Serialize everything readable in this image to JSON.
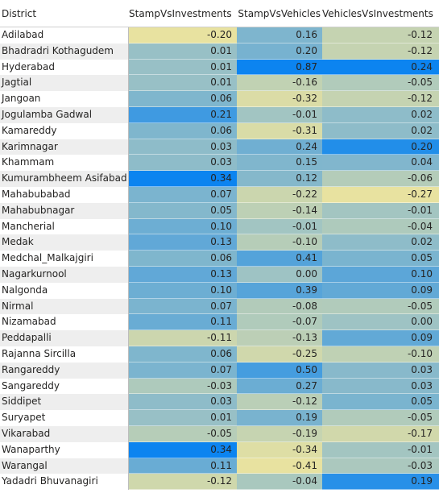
{
  "columns": {
    "district": "District",
    "c1": "StampVsInvestments",
    "c2": "StampVsVehicles",
    "c3": "VehiclesVsInvestments"
  },
  "colors": {
    "negative": "#e8e2a0",
    "neutral": "#9ec3c4",
    "positive": "#0c84f0"
  },
  "rows": [
    {
      "district": "Adilabad",
      "c1": "-0.20",
      "c2": "0.16",
      "c3": "-0.12"
    },
    {
      "district": "Bhadradri Kothagudem",
      "c1": "0.01",
      "c2": "0.20",
      "c3": "-0.12"
    },
    {
      "district": "Hyderabad",
      "c1": "0.01",
      "c2": "0.87",
      "c3": "0.24"
    },
    {
      "district": "Jagtial",
      "c1": "0.01",
      "c2": "-0.16",
      "c3": "-0.05"
    },
    {
      "district": "Jangoan",
      "c1": "0.06",
      "c2": "-0.32",
      "c3": "-0.12"
    },
    {
      "district": "Jogulamba Gadwal",
      "c1": "0.21",
      "c2": "-0.01",
      "c3": "0.02"
    },
    {
      "district": "Kamareddy",
      "c1": "0.06",
      "c2": "-0.31",
      "c3": "0.02"
    },
    {
      "district": "Karimnagar",
      "c1": "0.03",
      "c2": "0.24",
      "c3": "0.20"
    },
    {
      "district": "Khammam",
      "c1": "0.03",
      "c2": "0.15",
      "c3": "0.04"
    },
    {
      "district": "Kumurambheem Asifabad",
      "c1": "0.34",
      "c2": "0.12",
      "c3": "-0.06"
    },
    {
      "district": "Mahabubabad",
      "c1": "0.07",
      "c2": "-0.22",
      "c3": "-0.27"
    },
    {
      "district": "Mahabubnagar",
      "c1": "0.05",
      "c2": "-0.14",
      "c3": "-0.01"
    },
    {
      "district": "Mancherial",
      "c1": "0.10",
      "c2": "-0.01",
      "c3": "-0.04"
    },
    {
      "district": "Medak",
      "c1": "0.13",
      "c2": "-0.10",
      "c3": "0.02"
    },
    {
      "district": "Medchal_Malkajgiri",
      "c1": "0.06",
      "c2": "0.41",
      "c3": "0.05"
    },
    {
      "district": "Nagarkurnool",
      "c1": "0.13",
      "c2": "0.00",
      "c3": "0.10"
    },
    {
      "district": "Nalgonda",
      "c1": "0.10",
      "c2": "0.39",
      "c3": "0.09"
    },
    {
      "district": "Nirmal",
      "c1": "0.07",
      "c2": "-0.08",
      "c3": "-0.05"
    },
    {
      "district": "Nizamabad",
      "c1": "0.11",
      "c2": "-0.07",
      "c3": "0.00"
    },
    {
      "district": "Peddapalli",
      "c1": "-0.11",
      "c2": "-0.13",
      "c3": "0.09"
    },
    {
      "district": "Rajanna Sircilla",
      "c1": "0.06",
      "c2": "-0.25",
      "c3": "-0.10"
    },
    {
      "district": "Rangareddy",
      "c1": "0.07",
      "c2": "0.50",
      "c3": "0.03"
    },
    {
      "district": "Sangareddy",
      "c1": "-0.03",
      "c2": "0.27",
      "c3": "0.03"
    },
    {
      "district": "Siddipet",
      "c1": "0.03",
      "c2": "-0.12",
      "c3": "0.05"
    },
    {
      "district": "Suryapet",
      "c1": "0.01",
      "c2": "0.19",
      "c3": "-0.05"
    },
    {
      "district": "Vikarabad",
      "c1": "-0.05",
      "c2": "-0.19",
      "c3": "-0.17"
    },
    {
      "district": "Wanaparthy",
      "c1": "0.34",
      "c2": "-0.34",
      "c3": "-0.01"
    },
    {
      "district": "Warangal",
      "c1": "0.11",
      "c2": "-0.41",
      "c3": "-0.03"
    },
    {
      "district": "Yadadri Bhuvanagiri",
      "c1": "-0.12",
      "c2": "-0.04",
      "c3": "0.19"
    }
  ]
}
